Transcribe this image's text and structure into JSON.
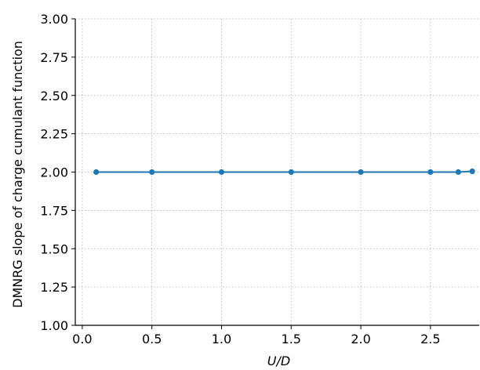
{
  "chart_data": {
    "type": "line",
    "title": "",
    "xlabel": "U/D",
    "ylabel": "DMNRG slope of charge cumulant function",
    "xlim": [
      -0.05,
      2.85
    ],
    "ylim": [
      1.0,
      3.0
    ],
    "xticks": [
      0.0,
      0.5,
      1.0,
      1.5,
      2.0,
      2.5
    ],
    "xtick_labels": [
      "0.0",
      "0.5",
      "1.0",
      "1.5",
      "2.0",
      "2.5"
    ],
    "yticks": [
      1.0,
      1.25,
      1.5,
      1.75,
      2.0,
      2.25,
      2.5,
      2.75,
      3.0
    ],
    "ytick_labels": [
      "1.00",
      "1.25",
      "1.50",
      "1.75",
      "2.00",
      "2.25",
      "2.50",
      "2.75",
      "3.00"
    ],
    "grid": true,
    "legend": "none",
    "series": [
      {
        "color": "#1f77b4",
        "x": [
          0.1,
          0.5,
          1.0,
          1.5,
          2.0,
          2.5,
          2.7,
          2.8
        ],
        "y": [
          2.0,
          2.0,
          2.0,
          2.0,
          2.0,
          2.0,
          2.0,
          2.005
        ]
      }
    ]
  }
}
